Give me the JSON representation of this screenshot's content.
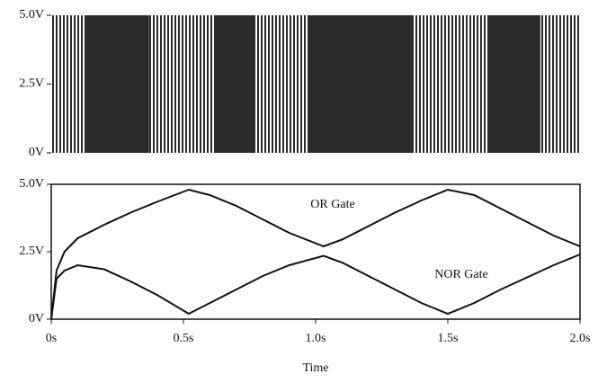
{
  "chart_data": [
    {
      "type": "pulse",
      "switching": [
        [
          0,
          0.13
        ],
        [
          0.37,
          0.62
        ],
        [
          0.77,
          0.97
        ],
        [
          1.37,
          1.65
        ],
        [
          1.85,
          2.0
        ]
      ],
      "xlim": [
        0,
        2
      ],
      "ylim": [
        0,
        5
      ],
      "yticks": [
        {
          "value": 0,
          "label": "0V"
        },
        {
          "value": 2.5,
          "label": "2.5V"
        },
        {
          "value": 5,
          "label": "5.0V"
        }
      ],
      "color": "#ffffff",
      "background": "#2b2b2b"
    },
    {
      "type": "line",
      "x": [
        0,
        0.02,
        0.05,
        0.1,
        0.2,
        0.3,
        0.4,
        0.52,
        0.6,
        0.7,
        0.8,
        0.9,
        1.03,
        1.1,
        1.2,
        1.3,
        1.4,
        1.5,
        1.6,
        1.7,
        1.8,
        1.9,
        2.0
      ],
      "series": [
        {
          "name": "OR Gate",
          "color": "#111111",
          "values": [
            0,
            1.8,
            2.5,
            3.0,
            3.5,
            3.95,
            4.35,
            4.8,
            4.6,
            4.2,
            3.7,
            3.2,
            2.7,
            2.95,
            3.45,
            3.95,
            4.4,
            4.8,
            4.6,
            4.1,
            3.6,
            3.1,
            2.7
          ]
        },
        {
          "name": "NOR Gate",
          "color": "#111111",
          "values": [
            0,
            1.5,
            1.8,
            2.0,
            1.85,
            1.4,
            0.9,
            0.2,
            0.6,
            1.1,
            1.6,
            2.0,
            2.35,
            2.1,
            1.6,
            1.1,
            0.6,
            0.2,
            0.6,
            1.1,
            1.55,
            2.0,
            2.4
          ]
        }
      ],
      "xlim": [
        0,
        2
      ],
      "ylim": [
        0,
        5
      ],
      "xticks": [
        {
          "value": 0,
          "label": "0s"
        },
        {
          "value": 0.5,
          "label": "0.5s"
        },
        {
          "value": 1,
          "label": "1.0s"
        },
        {
          "value": 1.5,
          "label": "1.5s"
        },
        {
          "value": 2,
          "label": "2.0s"
        }
      ],
      "yticks": [
        {
          "value": 0,
          "label": "0V"
        },
        {
          "value": 2.5,
          "label": "2.5V"
        },
        {
          "value": 5,
          "label": "5.0V"
        }
      ],
      "xlabel": "Time"
    }
  ]
}
